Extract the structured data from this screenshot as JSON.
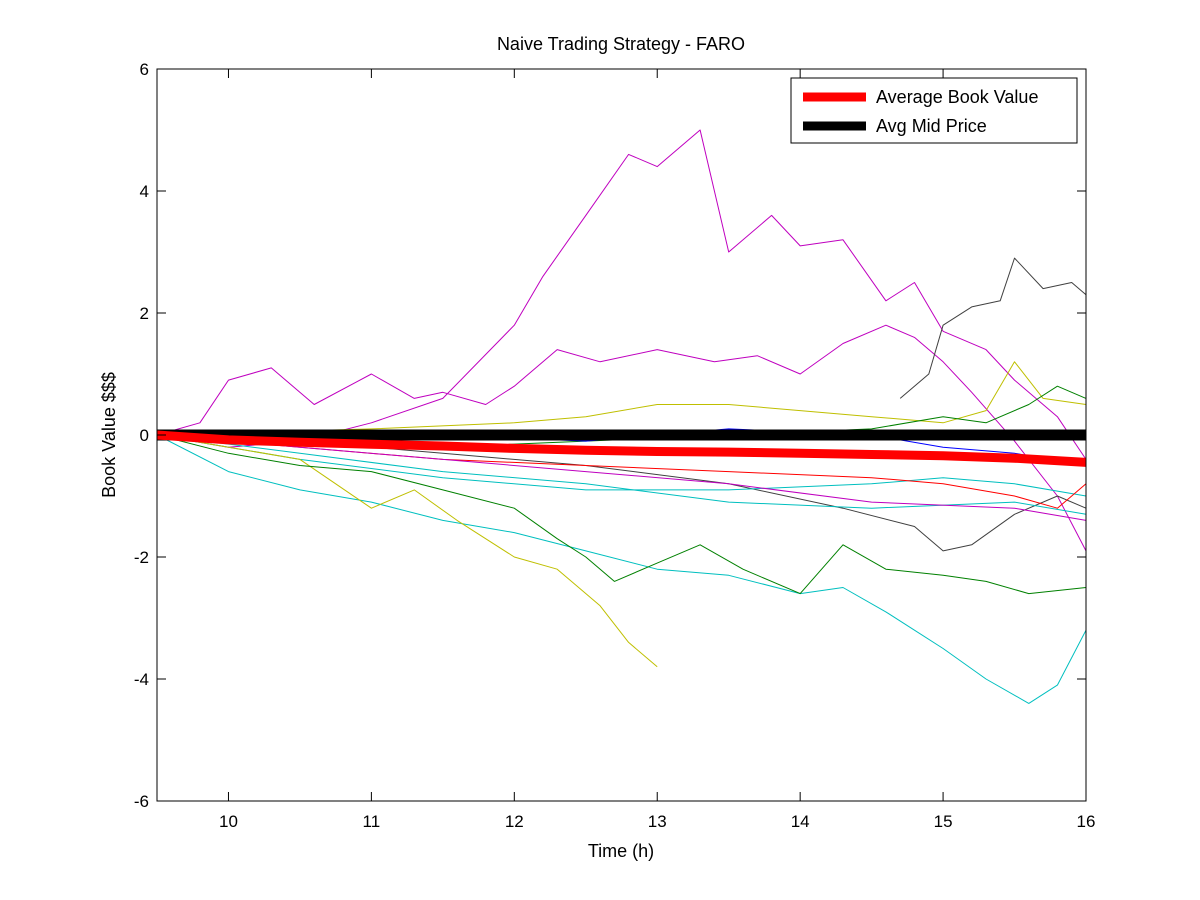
{
  "chart_data": {
    "type": "line",
    "title": "Naive Trading Strategy - FARO",
    "xlabel": "Time (h)",
    "ylabel": "Book Value $$$",
    "xlim": [
      9.5,
      16
    ],
    "ylim": [
      -6,
      6
    ],
    "xticks": [
      10,
      11,
      12,
      13,
      14,
      15,
      16
    ],
    "yticks": [
      -6,
      -4,
      -2,
      0,
      2,
      4,
      6
    ],
    "grid": false,
    "legend_position": "top-right",
    "legend": [
      {
        "name": "Average Book Value",
        "color": "#ff0000"
      },
      {
        "name": "Avg Mid Price",
        "color": "#000000"
      }
    ],
    "series": [
      {
        "name": "Average Book Value",
        "color": "#ff0000",
        "emphasis": true,
        "x": [
          9.5,
          10.0,
          10.5,
          11.0,
          11.5,
          12.0,
          12.5,
          13.0,
          13.5,
          14.0,
          14.5,
          15.0,
          15.5,
          16.0
        ],
        "y": [
          0,
          -0.08,
          -0.12,
          -0.15,
          -0.18,
          -0.22,
          -0.25,
          -0.27,
          -0.28,
          -0.3,
          -0.32,
          -0.34,
          -0.38,
          -0.45
        ]
      },
      {
        "name": "Avg Mid Price",
        "color": "#000000",
        "emphasis": true,
        "x": [
          9.5,
          16.0
        ],
        "y": [
          0,
          0
        ]
      },
      {
        "color": "#bf00bf",
        "x": [
          9.5,
          10.0,
          10.5,
          11.0,
          11.5,
          12.0,
          12.2,
          12.5,
          12.8,
          13.0,
          13.3,
          13.5,
          13.8,
          14.0,
          14.3,
          14.6,
          14.8,
          15.0,
          15.3,
          15.5,
          15.8,
          16.0
        ],
        "y": [
          0,
          -0.2,
          -0.1,
          0.2,
          0.6,
          1.8,
          2.6,
          3.6,
          4.6,
          4.4,
          5.0,
          3.0,
          3.6,
          3.1,
          3.2,
          2.2,
          2.5,
          1.7,
          1.4,
          0.9,
          0.3,
          -0.4
        ]
      },
      {
        "color": "#bf00bf",
        "x": [
          9.5,
          9.8,
          10.0,
          10.3,
          10.6,
          11.0,
          11.3,
          11.5,
          11.8,
          12.0,
          12.3,
          12.6,
          13.0,
          13.4,
          13.7,
          14.0,
          14.3,
          14.6,
          14.8,
          15.0,
          15.2,
          15.5,
          15.8,
          16.0
        ],
        "y": [
          0,
          0.2,
          0.9,
          1.1,
          0.5,
          1.0,
          0.6,
          0.7,
          0.5,
          0.8,
          1.4,
          1.2,
          1.4,
          1.2,
          1.3,
          1.0,
          1.5,
          1.8,
          1.6,
          1.2,
          0.7,
          -0.1,
          -1.0,
          -1.9
        ]
      },
      {
        "color": "#404040",
        "x": [
          9.5,
          10.5,
          11.5,
          12.5,
          13.5,
          14.3,
          14.8,
          15.0,
          15.2,
          15.5,
          15.8,
          16.0
        ],
        "y": [
          0,
          -0.1,
          -0.3,
          -0.5,
          -0.8,
          -1.2,
          -1.5,
          -1.9,
          -1.8,
          -1.3,
          -1.0,
          -1.2
        ]
      },
      {
        "color": "#404040",
        "x": [
          14.7,
          14.9,
          15.0,
          15.2,
          15.4,
          15.5,
          15.7,
          15.9,
          16.0
        ],
        "y": [
          0.6,
          1.0,
          1.8,
          2.1,
          2.2,
          2.9,
          2.4,
          2.5,
          2.3
        ]
      },
      {
        "color": "#00bfbf",
        "x": [
          9.5,
          10.0,
          10.5,
          11.0,
          11.5,
          12.0,
          12.5,
          13.0,
          13.5,
          14.0,
          14.3,
          14.6,
          15.0,
          15.3,
          15.6,
          15.8,
          16.0
        ],
        "y": [
          0,
          -0.6,
          -0.9,
          -1.1,
          -1.4,
          -1.6,
          -1.9,
          -2.2,
          -2.3,
          -2.6,
          -2.5,
          -2.9,
          -3.5,
          -4.0,
          -4.4,
          -4.1,
          -3.2
        ]
      },
      {
        "color": "#00bfbf",
        "x": [
          9.5,
          10.5,
          11.5,
          12.5,
          13.5,
          14.5,
          15.0,
          15.5,
          16.0
        ],
        "y": [
          0,
          -0.4,
          -0.7,
          -0.9,
          -0.9,
          -0.8,
          -0.7,
          -0.8,
          -1.0
        ]
      },
      {
        "color": "#bfbf00",
        "x": [
          9.5,
          10.0,
          10.5,
          11.0,
          11.3,
          11.6,
          12.0,
          12.3,
          12.6,
          12.8,
          13.0
        ],
        "y": [
          0,
          -0.2,
          -0.4,
          -1.2,
          -0.9,
          -1.4,
          -2.0,
          -2.2,
          -2.8,
          -3.4,
          -3.8
        ]
      },
      {
        "color": "#bfbf00",
        "x": [
          9.5,
          11.0,
          12.0,
          12.5,
          13.0,
          13.5,
          14.0,
          14.5,
          15.0,
          15.3,
          15.5,
          15.7,
          16.0
        ],
        "y": [
          0,
          0.1,
          0.2,
          0.3,
          0.5,
          0.5,
          0.4,
          0.3,
          0.2,
          0.4,
          1.2,
          0.6,
          0.5
        ]
      },
      {
        "color": "#008000",
        "x": [
          9.5,
          10.0,
          10.5,
          11.0,
          11.5,
          12.0,
          12.3,
          12.5,
          12.7,
          13.0,
          13.3,
          13.6,
          14.0,
          14.3,
          14.6,
          15.0,
          15.3,
          15.6,
          16.0
        ],
        "y": [
          0,
          -0.3,
          -0.5,
          -0.6,
          -0.9,
          -1.2,
          -1.7,
          -2.0,
          -2.4,
          -2.1,
          -1.8,
          -2.2,
          -2.6,
          -1.8,
          -2.2,
          -2.3,
          -2.4,
          -2.6,
          -2.5
        ]
      },
      {
        "color": "#008000",
        "x": [
          9.5,
          10.5,
          11.5,
          12.5,
          13.5,
          14.5,
          15.0,
          15.3,
          15.6,
          15.8,
          16.0
        ],
        "y": [
          0,
          -0.1,
          -0.2,
          -0.1,
          0.0,
          0.1,
          0.3,
          0.2,
          0.5,
          0.8,
          0.6
        ]
      },
      {
        "color": "#0000ff",
        "x": [
          9.5,
          10.5,
          11.5,
          12.5,
          13.5,
          14.5,
          15.0,
          15.5,
          16.0
        ],
        "y": [
          0,
          -0.05,
          0.0,
          -0.1,
          0.1,
          0.0,
          -0.2,
          -0.3,
          -0.5
        ]
      },
      {
        "color": "#ff0000",
        "x": [
          9.5,
          10.5,
          11.5,
          12.5,
          13.5,
          14.5,
          15.0,
          15.5,
          15.8,
          16.0
        ],
        "y": [
          0,
          -0.2,
          -0.4,
          -0.5,
          -0.6,
          -0.7,
          -0.8,
          -1.0,
          -1.2,
          -0.8
        ]
      },
      {
        "color": "#00bfbf",
        "x": [
          9.5,
          10.5,
          11.5,
          12.5,
          13.5,
          14.5,
          15.5,
          16.0
        ],
        "y": [
          0,
          -0.3,
          -0.6,
          -0.8,
          -1.1,
          -1.2,
          -1.1,
          -1.3
        ]
      },
      {
        "color": "#bf00bf",
        "x": [
          9.5,
          10.5,
          11.5,
          12.5,
          13.5,
          14.5,
          15.5,
          16.0
        ],
        "y": [
          0,
          -0.2,
          -0.4,
          -0.6,
          -0.8,
          -1.1,
          -1.2,
          -1.4
        ]
      }
    ]
  }
}
